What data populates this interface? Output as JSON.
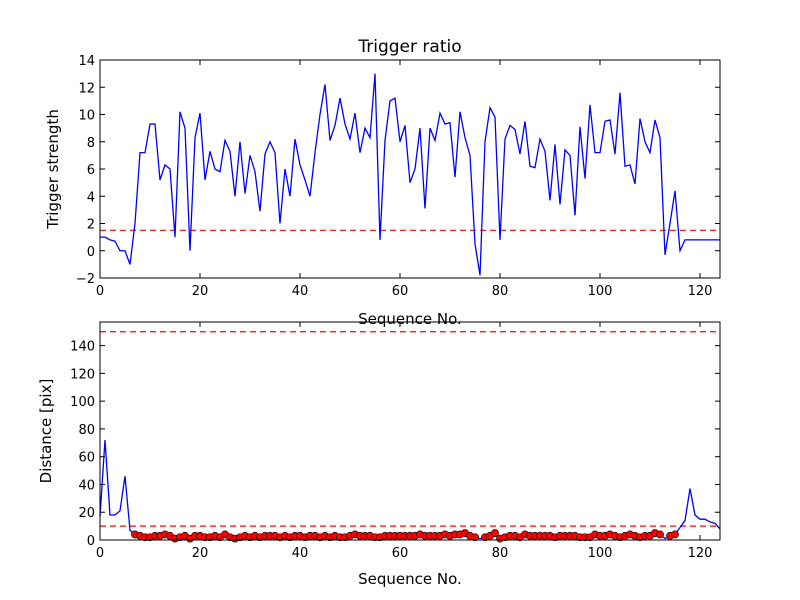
{
  "chart_data": [
    {
      "type": "line",
      "title": "Trigger ratio",
      "xlabel": "Sequence No.",
      "ylabel": "Trigger strength",
      "xlim": [
        0,
        124
      ],
      "ylim": [
        -2,
        14
      ],
      "xticks": [
        0,
        20,
        40,
        60,
        80,
        100,
        120
      ],
      "yticks": [
        -2,
        0,
        2,
        4,
        6,
        8,
        10,
        12,
        14
      ],
      "threshold": 1.5,
      "threshold_color": "#ff0000",
      "line_color": "#0000ff",
      "x": [
        0,
        1,
        2,
        3,
        4,
        5,
        6,
        7,
        8,
        9,
        10,
        11,
        12,
        13,
        14,
        15,
        16,
        17,
        18,
        19,
        20,
        21,
        22,
        23,
        24,
        25,
        26,
        27,
        28,
        29,
        30,
        31,
        32,
        33,
        34,
        35,
        36,
        37,
        38,
        39,
        40,
        41,
        42,
        43,
        44,
        45,
        46,
        47,
        48,
        49,
        50,
        51,
        52,
        53,
        54,
        55,
        56,
        57,
        58,
        59,
        60,
        61,
        62,
        63,
        64,
        65,
        66,
        67,
        68,
        69,
        70,
        71,
        72,
        73,
        74,
        75,
        76,
        77,
        78,
        79,
        80,
        81,
        82,
        83,
        84,
        85,
        86,
        87,
        88,
        89,
        90,
        91,
        92,
        93,
        94,
        95,
        96,
        97,
        98,
        99,
        100,
        101,
        102,
        103,
        104,
        105,
        106,
        107,
        108,
        109,
        110,
        111,
        112,
        113,
        114,
        115,
        116,
        117,
        118,
        119,
        120,
        121,
        122,
        123,
        124
      ],
      "y": [
        1.0,
        1.0,
        0.8,
        0.7,
        0.0,
        0.0,
        -1.0,
        2.0,
        7.2,
        7.2,
        9.3,
        9.3,
        5.2,
        6.3,
        6.0,
        1.0,
        10.2,
        9.0,
        0.0,
        8.3,
        10.1,
        5.2,
        7.3,
        6.0,
        5.8,
        8.1,
        7.3,
        4.0,
        8.0,
        4.2,
        7.0,
        5.8,
        2.9,
        7.1,
        8.0,
        7.2,
        2.0,
        6.0,
        4.0,
        8.2,
        6.3,
        5.2,
        4.0,
        7.2,
        10.0,
        12.2,
        8.1,
        9.2,
        11.2,
        9.3,
        8.2,
        10.1,
        7.2,
        9.0,
        8.3,
        13.0,
        0.8,
        8.1,
        11.0,
        11.2,
        8.0,
        9.2,
        5.0,
        6.0,
        9.0,
        3.1,
        9.0,
        8.1,
        10.1,
        9.3,
        9.4,
        5.4,
        10.2,
        8.3,
        7.0,
        0.5,
        -1.8,
        8.0,
        10.5,
        9.8,
        0.8,
        8.2,
        9.2,
        8.9,
        7.1,
        9.5,
        6.2,
        6.1,
        8.2,
        7.3,
        3.7,
        7.8,
        3.4,
        7.4,
        7.0,
        2.6,
        9.1,
        5.3,
        10.7,
        7.2,
        7.2,
        9.5,
        9.6,
        7.1,
        11.6,
        6.2,
        6.3,
        4.9,
        9.7,
        8.0,
        7.2,
        9.6,
        8.3,
        -0.3,
        2.0,
        4.4,
        0.0,
        0.8,
        0.8,
        0.8,
        0.8,
        0.8,
        0.8,
        0.8,
        0.8
      ]
    },
    {
      "type": "line",
      "xlabel": "Sequence No.",
      "ylabel": "Distance [pix]",
      "xlim": [
        0,
        124
      ],
      "ylim": [
        0,
        157
      ],
      "xticks": [
        0,
        20,
        40,
        60,
        80,
        100,
        120
      ],
      "yticks": [
        0,
        20,
        40,
        60,
        80,
        100,
        120,
        140
      ],
      "thresholds": [
        150,
        10
      ],
      "threshold_color": "#ff0000",
      "line_color": "#0000ff",
      "marker_color": "#ff0000",
      "x": [
        0,
        1,
        2,
        3,
        4,
        5,
        6,
        7,
        8,
        9,
        10,
        11,
        12,
        13,
        14,
        15,
        16,
        17,
        18,
        19,
        20,
        21,
        22,
        23,
        24,
        25,
        26,
        27,
        28,
        29,
        30,
        31,
        32,
        33,
        34,
        35,
        36,
        37,
        38,
        39,
        40,
        41,
        42,
        43,
        44,
        45,
        46,
        47,
        48,
        49,
        50,
        51,
        52,
        53,
        54,
        55,
        56,
        57,
        58,
        59,
        60,
        61,
        62,
        63,
        64,
        65,
        66,
        67,
        68,
        69,
        70,
        71,
        72,
        73,
        74,
        75,
        76,
        77,
        78,
        79,
        80,
        81,
        82,
        83,
        84,
        85,
        86,
        87,
        88,
        89,
        90,
        91,
        92,
        93,
        94,
        95,
        96,
        97,
        98,
        99,
        100,
        101,
        102,
        103,
        104,
        105,
        106,
        107,
        108,
        109,
        110,
        111,
        112,
        113,
        114,
        115,
        116,
        117,
        118,
        119,
        120,
        121,
        122,
        123,
        124
      ],
      "y": [
        17,
        72,
        18,
        18,
        21,
        46,
        7,
        4,
        3,
        2,
        2,
        3,
        3,
        4,
        3,
        1,
        2,
        3,
        1,
        3,
        3,
        2,
        2,
        3,
        2,
        4,
        2,
        1,
        2,
        3,
        2,
        3,
        2,
        3,
        3,
        3,
        2,
        3,
        2,
        3,
        3,
        2,
        3,
        3,
        2,
        3,
        2,
        3,
        2,
        2,
        3,
        4,
        3,
        3,
        3,
        2,
        2,
        3,
        3,
        3,
        3,
        3,
        3,
        3,
        4,
        3,
        3,
        3,
        3,
        4,
        3,
        4,
        4,
        5,
        3,
        2,
        1,
        2,
        3,
        5,
        1,
        2,
        3,
        3,
        2,
        4,
        3,
        3,
        3,
        3,
        3,
        2,
        3,
        3,
        3,
        3,
        2,
        2,
        2,
        4,
        3,
        3,
        4,
        3,
        2,
        3,
        4,
        3,
        2,
        3,
        3,
        5,
        4,
        1,
        3,
        4,
        9,
        14,
        37,
        18,
        15,
        15,
        13,
        12,
        8
      ],
      "markers_x": [
        7,
        8,
        9,
        10,
        11,
        12,
        13,
        14,
        15,
        16,
        17,
        18,
        19,
        20,
        21,
        22,
        23,
        24,
        25,
        26,
        27,
        28,
        29,
        30,
        31,
        32,
        33,
        34,
        35,
        36,
        37,
        38,
        39,
        40,
        41,
        42,
        43,
        44,
        45,
        46,
        47,
        48,
        49,
        50,
        51,
        52,
        53,
        54,
        55,
        56,
        57,
        58,
        59,
        60,
        61,
        62,
        63,
        64,
        65,
        66,
        67,
        68,
        69,
        70,
        71,
        72,
        73,
        74,
        75,
        77,
        78,
        79,
        80,
        81,
        82,
        83,
        84,
        85,
        86,
        87,
        88,
        89,
        90,
        91,
        92,
        93,
        94,
        95,
        96,
        97,
        98,
        99,
        100,
        101,
        102,
        103,
        104,
        105,
        106,
        107,
        108,
        109,
        110,
        111,
        112,
        114,
        115
      ],
      "markers_y": [
        4,
        3,
        2,
        2,
        3,
        3,
        4,
        3,
        1,
        2,
        3,
        1,
        3,
        3,
        2,
        2,
        3,
        2,
        4,
        2,
        1,
        2,
        3,
        2,
        3,
        2,
        3,
        3,
        3,
        2,
        3,
        2,
        3,
        3,
        2,
        3,
        3,
        2,
        3,
        2,
        3,
        2,
        2,
        3,
        4,
        3,
        3,
        3,
        2,
        2,
        3,
        3,
        3,
        3,
        3,
        3,
        3,
        4,
        3,
        3,
        3,
        3,
        4,
        3,
        4,
        4,
        5,
        3,
        2,
        2,
        3,
        5,
        1,
        2,
        3,
        3,
        2,
        4,
        3,
        3,
        3,
        3,
        3,
        2,
        3,
        3,
        3,
        3,
        2,
        2,
        2,
        4,
        3,
        3,
        4,
        3,
        2,
        3,
        4,
        3,
        2,
        3,
        3,
        5,
        4,
        3,
        4
      ]
    }
  ]
}
